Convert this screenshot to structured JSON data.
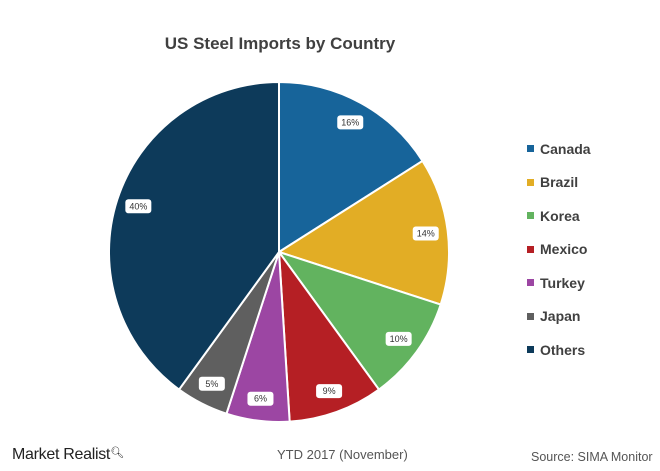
{
  "chart_data": {
    "type": "pie",
    "title": "US Steel Imports  by Country",
    "categories": [
      "Canada",
      "Brazil",
      "Korea",
      "Mexico",
      "Turkey",
      "Japan",
      "Others"
    ],
    "values": [
      16,
      14,
      10,
      9,
      6,
      5,
      40
    ],
    "labels": [
      "16%",
      "14%",
      "10%",
      "9%",
      "6%",
      "5%",
      "40%"
    ],
    "colors": [
      "#17649a",
      "#e2ad25",
      "#62b35f",
      "#b51f24",
      "#9c46a3",
      "#5f5f5f",
      "#0d3a5a"
    ],
    "start_angle": "top",
    "direction": "clockwise",
    "legend_position": "right"
  },
  "footer": {
    "period": "YTD 2017 (November)",
    "source": "Source: SIMA Monitor",
    "logo": "Market Realist"
  }
}
